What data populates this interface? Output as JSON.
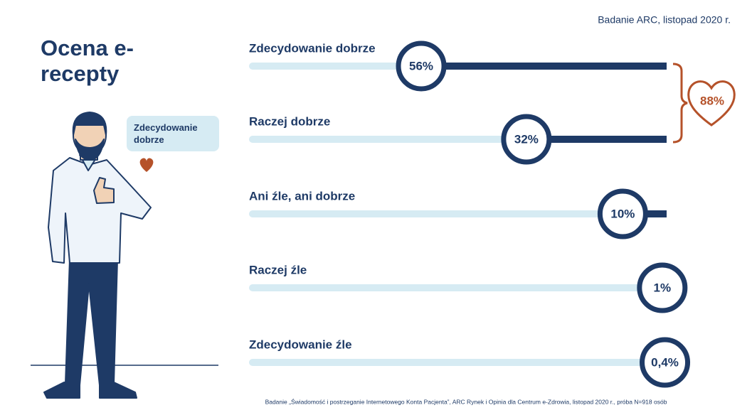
{
  "chart_data": {
    "type": "bar",
    "title": "Ocena e-recepty",
    "source": "Badanie ARC, listopad 2020 r.",
    "note": "Badanie „Świadomość i postrzeganie Internetowego Konta Pacjenta”, ARC Rynek i Opinia dla Centrum e-Zdrowia, listopad 2020 r., próba N=918 osób",
    "speech_bubble": "Zdecydowanie dobrze",
    "categories": [
      "Zdecydowanie dobrze",
      "Raczej dobrze",
      "Ani źle, ani dobrze",
      "Raczej źle",
      "Zdecydowanie źle"
    ],
    "values": [
      56,
      32,
      10,
      1,
      0.4
    ],
    "value_labels": [
      "56%",
      "32%",
      "10%",
      "1%",
      "0,4%"
    ],
    "color": "#1e3a66",
    "track_color": "#d6ebf3",
    "total": {
      "value": 88,
      "label": "88%"
    },
    "total_color": "#b5522a"
  }
}
